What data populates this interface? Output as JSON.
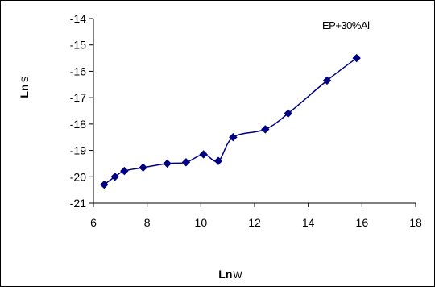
{
  "chart_data": {
    "type": "line",
    "annotation": "EP+30%Al",
    "xlabel": {
      "main": "Ln",
      "sub": "W"
    },
    "ylabel": {
      "main": "Ln",
      "sub": "S"
    },
    "xlim": [
      6,
      18
    ],
    "ylim": [
      -21,
      -14
    ],
    "xticks": [
      6,
      8,
      10,
      12,
      14,
      16,
      18
    ],
    "yticks": [
      -21,
      -20,
      -19,
      -18,
      -17,
      -16,
      -15,
      -14
    ],
    "grid": false,
    "legend": "top-right",
    "series": [
      {
        "color": "#000080",
        "marker": "diamond",
        "smooth": true,
        "points": [
          [
            6.4,
            -20.3
          ],
          [
            6.8,
            -20.0
          ],
          [
            7.15,
            -19.78
          ],
          [
            7.85,
            -19.65
          ],
          [
            8.75,
            -19.5
          ],
          [
            9.45,
            -19.45
          ],
          [
            10.1,
            -19.15
          ],
          [
            10.65,
            -19.4
          ],
          [
            11.2,
            -18.5
          ],
          [
            12.4,
            -18.2
          ],
          [
            13.25,
            -17.6
          ],
          [
            14.7,
            -16.35
          ],
          [
            15.8,
            -15.5
          ]
        ]
      }
    ]
  }
}
